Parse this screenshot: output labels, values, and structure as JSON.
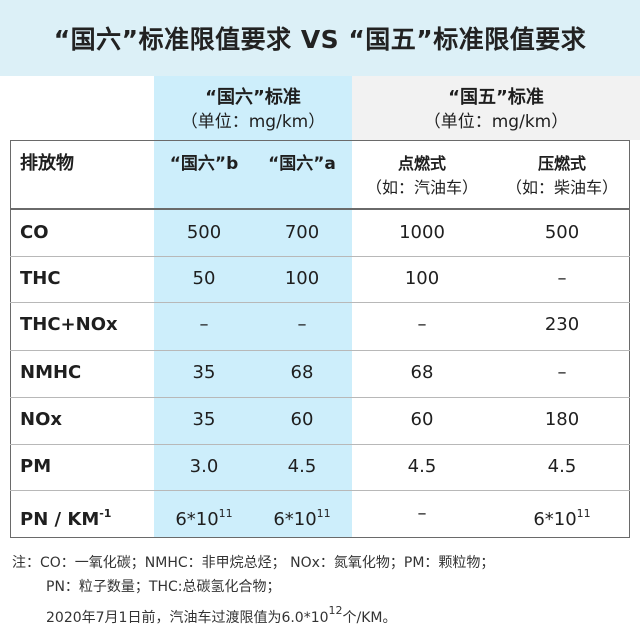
{
  "title": "“国六”标准限值要求 VS “国五”标准限值要求",
  "groups": {
    "guoliu": {
      "name": "“国六”标准",
      "unit": "（单位：mg/km）"
    },
    "guowu": {
      "name": "“国五”标准",
      "unit": "（单位：mg/km）"
    }
  },
  "headers": {
    "pollutant": "排放物",
    "col1": "“国六”b",
    "col2": "“国六”a",
    "col3": "点燃式",
    "col3_sub": "（如：汽油车）",
    "col4": "压燃式",
    "col4_sub": "（如：柴油车）"
  },
  "rows": [
    {
      "name": "CO",
      "v": [
        "500",
        "700",
        "1000",
        "500"
      ]
    },
    {
      "name": "THC",
      "v": [
        "50",
        "100",
        "100",
        "–"
      ]
    },
    {
      "name": "THC+NOx",
      "v": [
        "–",
        "–",
        "–",
        "230"
      ]
    },
    {
      "name": "NMHC",
      "v": [
        "35",
        "68",
        "68",
        "–"
      ]
    },
    {
      "name": "NOx",
      "v": [
        "35",
        "60",
        "60",
        "180"
      ]
    },
    {
      "name": "PM",
      "v": [
        "3.0",
        "4.5",
        "4.5",
        "4.5"
      ]
    }
  ],
  "pn_row": {
    "name": "PN / KM",
    "name_sup": "-1",
    "c1": "6*10",
    "c1_sup": "11",
    "c2": "6*10",
    "c2_sup": "11",
    "c3": "–",
    "c4": "6*10",
    "c4_sup": "11"
  },
  "notes": {
    "line1": "注：CO：一氧化碳；NMHC：非甲烷总烃； NOx：氮氧化物；PM：颗粒物；",
    "line2": "PN：粒子数量；THC:总碳氢化合物；",
    "line3_pre": "2020年7月1日前，汽油车过渡限值为6.0*10",
    "line3_sup": "12",
    "line3_post": "个/KM。"
  }
}
